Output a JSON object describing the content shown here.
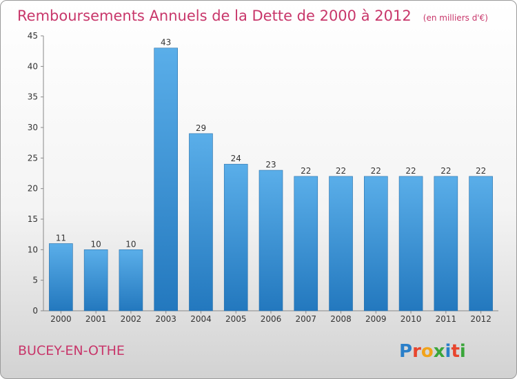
{
  "header": {
    "title": "Remboursements Annuels de la Dette de 2000 à 2012",
    "unit": "(en milliers d'€)"
  },
  "footer": {
    "commune": "BUCEY-EN-OTHE",
    "logo": {
      "letters": [
        "P",
        "r",
        "o",
        "x",
        "i",
        "t",
        "i"
      ],
      "colors": [
        "#2a7fc9",
        "#e8452d",
        "#f2a31a",
        "#3aa63a",
        "#2a7fc9",
        "#e8452d",
        "#3aa63a"
      ]
    }
  },
  "chart_data": {
    "type": "bar",
    "title": "Remboursements Annuels de la Dette de 2000 à 2012",
    "unit": "(en milliers d'€)",
    "xlabel": "",
    "ylabel": "",
    "categories": [
      "2000",
      "2001",
      "2002",
      "2003",
      "2004",
      "2005",
      "2006",
      "2007",
      "2008",
      "2009",
      "2010",
      "2011",
      "2012"
    ],
    "values": [
      11,
      10,
      10,
      43,
      29,
      24,
      23,
      22,
      22,
      22,
      22,
      22,
      22
    ],
    "ylim": [
      0,
      45
    ],
    "yticks": [
      0,
      5,
      10,
      15,
      20,
      25,
      30,
      35,
      40,
      45
    ],
    "grid": false,
    "legend": "none",
    "bar_color": "#3d93d6"
  }
}
